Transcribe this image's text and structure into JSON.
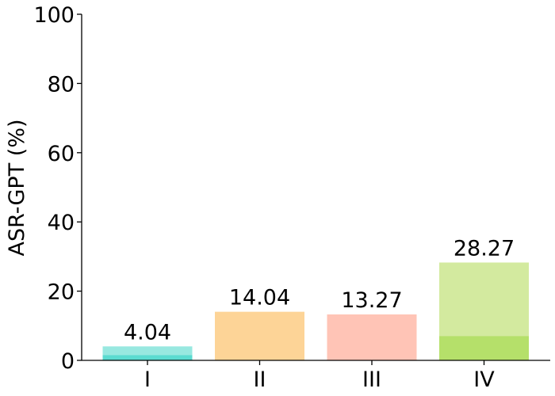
{
  "chart_data": {
    "type": "bar",
    "title": "",
    "xlabel": "",
    "ylabel": "ASR-GPT (%)",
    "ylim": [
      0,
      100
    ],
    "yticks": [
      0,
      20,
      40,
      60,
      80,
      100
    ],
    "grid": false,
    "categories": [
      "I",
      "II",
      "III",
      "IV"
    ],
    "values": [
      4.04,
      14.04,
      13.27,
      28.27
    ],
    "value_labels": [
      "4.04",
      "14.04",
      "13.27",
      "28.27"
    ],
    "inner_values": [
      1.5,
      0,
      0,
      7.0
    ],
    "colors": [
      "#98e8e0",
      "#fdd497",
      "#ffc4b6",
      "#d3ea9f"
    ],
    "inner_colors": [
      "#5bdbd0",
      "#fdd497",
      "#ffc4b6",
      "#b5e06a"
    ]
  }
}
